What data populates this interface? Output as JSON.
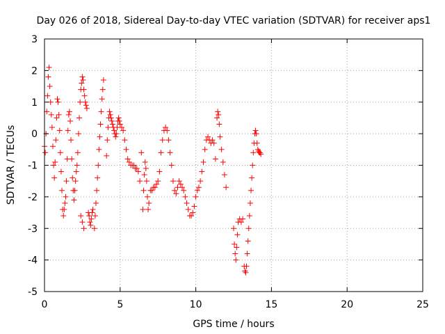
{
  "chart_data": {
    "type": "scatter",
    "title": "Day 026 of 2018, Sidereal Day-to-day VTEC variation (SDTVAR) for receiver aps1",
    "xlabel": "GPS time / hours",
    "ylabel": "SDTVAR / TECUs",
    "xlim": [
      0,
      25
    ],
    "ylim": [
      -5,
      3
    ],
    "xticks": [
      "0",
      "5",
      "10",
      "15",
      "20",
      "25"
    ],
    "yticks": [
      "-5",
      "-4",
      "-3",
      "-2",
      "-1",
      "0",
      "1",
      "2",
      "3"
    ],
    "grid": true,
    "marker": "+",
    "marker_color": "#ff0000",
    "series": [
      {
        "name": "aps1 SDTVAR",
        "points": [
          [
            0.0,
            -0.4
          ],
          [
            0.05,
            -0.6
          ],
          [
            0.1,
            0.0
          ],
          [
            0.15,
            0.7
          ],
          [
            0.2,
            1.2
          ],
          [
            0.25,
            1.8
          ],
          [
            0.3,
            2.1
          ],
          [
            0.35,
            1.5
          ],
          [
            0.4,
            1.0
          ],
          [
            0.45,
            0.6
          ],
          [
            0.5,
            0.2
          ],
          [
            0.55,
            -0.4
          ],
          [
            0.6,
            -1.0
          ],
          [
            0.65,
            -1.4
          ],
          [
            0.7,
            -0.9
          ],
          [
            0.75,
            -0.2
          ],
          [
            0.8,
            0.5
          ],
          [
            0.85,
            1.1
          ],
          [
            0.9,
            1.0
          ],
          [
            0.95,
            0.6
          ],
          [
            1.0,
            0.1
          ],
          [
            1.05,
            -0.6
          ],
          [
            1.1,
            -1.2
          ],
          [
            1.15,
            -1.8
          ],
          [
            1.2,
            -2.4
          ],
          [
            1.25,
            -2.6
          ],
          [
            1.3,
            -2.4
          ],
          [
            1.35,
            -2.2
          ],
          [
            1.4,
            -2.0
          ],
          [
            1.45,
            -1.5
          ],
          [
            1.5,
            -0.8
          ],
          [
            1.55,
            0.1
          ],
          [
            1.6,
            0.6
          ],
          [
            1.65,
            0.7
          ],
          [
            1.7,
            0.4
          ],
          [
            1.75,
            -0.2
          ],
          [
            1.8,
            -0.8
          ],
          [
            1.85,
            -1.4
          ],
          [
            1.9,
            -1.8
          ],
          [
            1.95,
            -2.1
          ],
          [
            2.0,
            -1.8
          ],
          [
            2.05,
            -1.5
          ],
          [
            2.1,
            -1.2
          ],
          [
            2.15,
            -1.0
          ],
          [
            2.2,
            -0.6
          ],
          [
            2.25,
            0.0
          ],
          [
            2.3,
            0.5
          ],
          [
            2.35,
            1.0
          ],
          [
            2.4,
            1.4
          ],
          [
            2.45,
            1.6
          ],
          [
            2.5,
            1.8
          ],
          [
            2.55,
            1.7
          ],
          [
            2.6,
            1.4
          ],
          [
            2.65,
            1.2
          ],
          [
            2.7,
            1.0
          ],
          [
            2.75,
            0.9
          ],
          [
            2.8,
            0.8
          ],
          [
            2.9,
            -2.5
          ],
          [
            2.95,
            -2.6
          ],
          [
            3.0,
            -2.8
          ],
          [
            3.05,
            -2.9
          ],
          [
            3.1,
            -2.7
          ],
          [
            3.15,
            -2.5
          ],
          [
            3.2,
            -2.4
          ],
          [
            2.4,
            -2.6
          ],
          [
            2.5,
            -2.8
          ],
          [
            2.6,
            -3.0
          ],
          [
            3.3,
            -3.0
          ],
          [
            3.35,
            -2.6
          ],
          [
            3.4,
            -2.2
          ],
          [
            3.45,
            -1.8
          ],
          [
            3.5,
            -1.4
          ],
          [
            3.55,
            -1.0
          ],
          [
            3.6,
            -0.5
          ],
          [
            3.65,
            -0.1
          ],
          [
            3.7,
            0.3
          ],
          [
            3.75,
            0.7
          ],
          [
            3.8,
            1.1
          ],
          [
            3.85,
            1.4
          ],
          [
            3.9,
            1.7
          ],
          [
            4.1,
            -0.7
          ],
          [
            4.15,
            -0.2
          ],
          [
            4.2,
            0.2
          ],
          [
            4.25,
            0.5
          ],
          [
            4.3,
            0.7
          ],
          [
            4.35,
            0.6
          ],
          [
            4.4,
            0.5
          ],
          [
            4.45,
            0.4
          ],
          [
            4.5,
            0.3
          ],
          [
            4.55,
            0.2
          ],
          [
            4.6,
            0.1
          ],
          [
            4.65,
            0.0
          ],
          [
            4.7,
            -0.1
          ],
          [
            4.75,
            0.0
          ],
          [
            4.8,
            0.2
          ],
          [
            4.85,
            0.4
          ],
          [
            4.9,
            0.5
          ],
          [
            4.95,
            0.4
          ],
          [
            5.0,
            0.3
          ],
          [
            5.1,
            0.2
          ],
          [
            5.2,
            0.1
          ],
          [
            5.3,
            -0.2
          ],
          [
            5.4,
            -0.5
          ],
          [
            5.5,
            -0.8
          ],
          [
            5.6,
            -0.9
          ],
          [
            5.7,
            -1.0
          ],
          [
            5.8,
            -1.0
          ],
          [
            5.9,
            -1.0
          ],
          [
            6.0,
            -1.1
          ],
          [
            6.1,
            -1.1
          ],
          [
            6.2,
            -1.2
          ],
          [
            6.3,
            -1.5
          ],
          [
            6.4,
            -0.6
          ],
          [
            6.5,
            -2.4
          ],
          [
            6.55,
            -1.8
          ],
          [
            6.6,
            -1.3
          ],
          [
            6.65,
            -0.9
          ],
          [
            6.7,
            -1.1
          ],
          [
            6.75,
            -1.5
          ],
          [
            6.8,
            -2.0
          ],
          [
            6.85,
            -2.4
          ],
          [
            6.9,
            -2.2
          ],
          [
            7.0,
            -1.8
          ],
          [
            7.1,
            -1.8
          ],
          [
            7.2,
            -1.7
          ],
          [
            7.3,
            -1.7
          ],
          [
            7.4,
            -1.6
          ],
          [
            7.5,
            -1.5
          ],
          [
            7.6,
            -1.2
          ],
          [
            7.7,
            -0.6
          ],
          [
            7.8,
            -0.2
          ],
          [
            7.9,
            0.1
          ],
          [
            8.0,
            0.2
          ],
          [
            8.1,
            0.1
          ],
          [
            8.2,
            -0.2
          ],
          [
            8.3,
            -0.6
          ],
          [
            8.4,
            -1.0
          ],
          [
            8.5,
            -1.5
          ],
          [
            8.6,
            -1.8
          ],
          [
            8.7,
            -1.9
          ],
          [
            8.8,
            -1.7
          ],
          [
            8.9,
            -1.5
          ],
          [
            9.0,
            -1.6
          ],
          [
            9.1,
            -1.7
          ],
          [
            9.2,
            -1.8
          ],
          [
            9.3,
            -2.0
          ],
          [
            9.4,
            -2.2
          ],
          [
            9.5,
            -2.4
          ],
          [
            9.6,
            -2.6
          ],
          [
            9.7,
            -2.6
          ],
          [
            9.8,
            -2.5
          ],
          [
            9.9,
            -2.3
          ],
          [
            10.0,
            -2.0
          ],
          [
            10.1,
            -1.8
          ],
          [
            10.2,
            -1.7
          ],
          [
            10.3,
            -1.5
          ],
          [
            10.4,
            -1.2
          ],
          [
            10.5,
            -0.9
          ],
          [
            10.6,
            -0.5
          ],
          [
            10.7,
            -0.2
          ],
          [
            10.8,
            -0.1
          ],
          [
            10.9,
            -0.2
          ],
          [
            11.0,
            -0.3
          ],
          [
            11.1,
            -0.2
          ],
          [
            11.2,
            -0.3
          ],
          [
            11.3,
            -0.8
          ],
          [
            11.4,
            0.5
          ],
          [
            11.45,
            0.7
          ],
          [
            11.5,
            0.6
          ],
          [
            11.55,
            0.3
          ],
          [
            11.6,
            -0.1
          ],
          [
            11.7,
            -0.5
          ],
          [
            11.8,
            -0.9
          ],
          [
            11.9,
            -1.3
          ],
          [
            12.0,
            -1.7
          ],
          [
            12.5,
            -3.0
          ],
          [
            12.55,
            -3.5
          ],
          [
            12.6,
            -3.8
          ],
          [
            12.65,
            -4.0
          ],
          [
            12.7,
            -3.6
          ],
          [
            12.75,
            -3.2
          ],
          [
            12.8,
            -2.8
          ],
          [
            12.9,
            -2.7
          ],
          [
            13.0,
            -2.8
          ],
          [
            13.1,
            -2.7
          ],
          [
            13.2,
            -4.2
          ],
          [
            13.25,
            -4.35
          ],
          [
            13.3,
            -4.4
          ],
          [
            13.35,
            -4.2
          ],
          [
            13.4,
            -3.8
          ],
          [
            13.45,
            -3.4
          ],
          [
            13.5,
            -3.0
          ],
          [
            13.55,
            -2.6
          ],
          [
            13.6,
            -2.2
          ],
          [
            13.65,
            -1.8
          ],
          [
            13.7,
            -1.4
          ],
          [
            13.75,
            -1.0
          ],
          [
            13.8,
            -0.6
          ],
          [
            13.85,
            -0.3
          ],
          [
            13.9,
            0.0
          ],
          [
            13.95,
            0.1
          ],
          [
            14.0,
            0.0
          ],
          [
            14.05,
            -0.3
          ],
          [
            14.1,
            -0.5
          ],
          [
            14.15,
            -0.55
          ],
          [
            14.2,
            -0.6
          ],
          [
            14.25,
            -0.6
          ],
          [
            14.3,
            -0.65
          ]
        ]
      }
    ]
  }
}
